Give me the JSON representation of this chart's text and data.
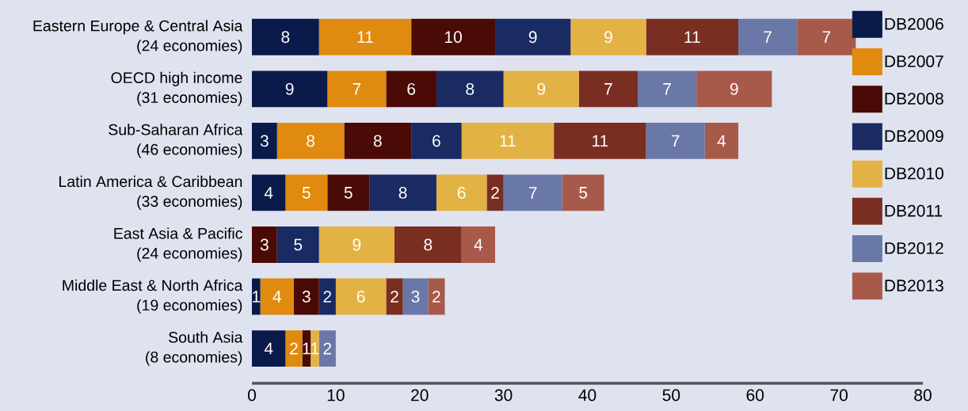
{
  "chart_data": {
    "type": "bar",
    "orientation": "horizontal",
    "stacked": true,
    "legend": "right",
    "xlim": [
      0,
      80
    ],
    "xticks": [
      0,
      10,
      20,
      30,
      40,
      50,
      60,
      70,
      80
    ],
    "categories": [
      "Eastern Europe & Central Asia\n(24 economies)",
      "OECD high income\n(31 economies)",
      "Sub-Saharan Africa\n(46 economies)",
      "Latin America & Caribbean\n(33 economies)",
      "East Asia & Pacific\n(24 economies)",
      "Middle East & North Africa\n(19 economies)",
      "South Asia\n(8 economies)"
    ],
    "series": [
      {
        "name": "DB2006",
        "color": "#0a1a4a",
        "values": [
          8,
          9,
          3,
          4,
          0,
          1,
          4
        ],
        "value_labels": [
          "8",
          "9",
          "3",
          "4",
          null,
          "1",
          "4"
        ]
      },
      {
        "name": "DB2007",
        "color": "#e08a10",
        "values": [
          11,
          7,
          8,
          5,
          0,
          4,
          2
        ],
        "value_labels": [
          "11",
          "7",
          "8",
          "5",
          null,
          "4",
          "2"
        ]
      },
      {
        "name": "DB2008",
        "color": "#4a0a06",
        "values": [
          10,
          6,
          8,
          5,
          3,
          3,
          1
        ],
        "value_labels": [
          "10",
          "6",
          "8",
          "5",
          "3",
          "3",
          "1"
        ]
      },
      {
        "name": "DB2009",
        "color": "#1a2a62",
        "values": [
          9,
          8,
          6,
          8,
          5,
          2,
          0
        ],
        "value_labels": [
          "9",
          "8",
          "6",
          "8",
          "5",
          "2",
          null
        ]
      },
      {
        "name": "DB2010",
        "color": "#e3b244",
        "values": [
          9,
          9,
          11,
          6,
          9,
          6,
          1
        ],
        "value_labels": [
          "9",
          "9",
          "11",
          "6",
          "9",
          "6",
          "1"
        ]
      },
      {
        "name": "DB2011",
        "color": "#7a2e22",
        "values": [
          11,
          7,
          11,
          2,
          8,
          2,
          0
        ],
        "value_labels": [
          "11",
          "7",
          "11",
          "2",
          "8",
          "2",
          null
        ]
      },
      {
        "name": "DB2012",
        "color": "#6a78a8",
        "values": [
          7,
          7,
          7,
          7,
          0,
          3,
          2
        ],
        "value_labels": [
          "7",
          "7",
          "7",
          "7",
          null,
          "3",
          "2"
        ]
      },
      {
        "name": "DB2013",
        "color": "#a85a4a",
        "values": [
          7,
          9,
          4,
          5,
          4,
          2,
          0
        ],
        "value_labels": [
          "7",
          "9",
          "4",
          "5",
          "4",
          "2",
          null
        ]
      }
    ]
  }
}
